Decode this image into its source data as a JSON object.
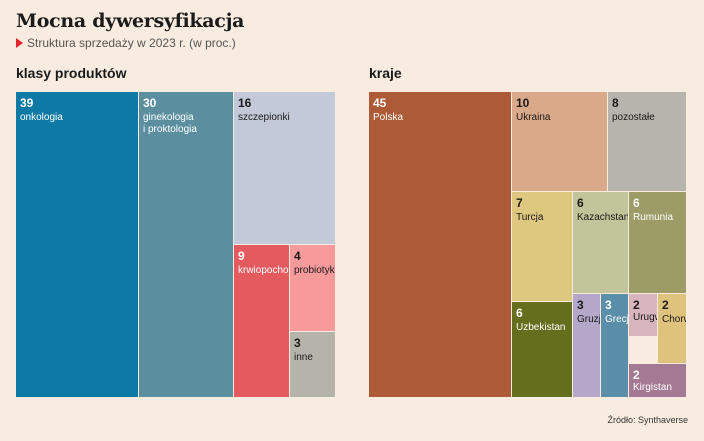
{
  "header": {
    "title": "Mocna dywersyfikacja",
    "subtitle": "Struktura sprzedaży w 2023 r. (w proc.)"
  },
  "source": "Źródło: Synthaverse",
  "chart_data": [
    {
      "type": "treemap",
      "title": "klasy produktów",
      "items": [
        {
          "label": "onkologia",
          "value": 39,
          "color": "#0f79a6"
        },
        {
          "label": "ginekologia\ni proktologia",
          "value": 30,
          "color": "#5b8fa0"
        },
        {
          "label": "szczepionki",
          "value": 16,
          "color": "#c3c9d9"
        },
        {
          "label": "krwiopochodne",
          "value": 9,
          "color": "#e45a5f"
        },
        {
          "label": "probiotyki",
          "value": 4,
          "color": "#f69a9b"
        },
        {
          "label": "inne",
          "value": 3,
          "color": "#b5b4aa"
        }
      ]
    },
    {
      "type": "treemap",
      "title": "kraje",
      "items": [
        {
          "label": "Polska",
          "value": 45,
          "color": "#ad5a36"
        },
        {
          "label": "Ukraina",
          "value": 10,
          "color": "#d9a98a"
        },
        {
          "label": "pozostałe",
          "value": 8,
          "color": "#b6b5ad"
        },
        {
          "label": "Turcja",
          "value": 7,
          "color": "#dec77f"
        },
        {
          "label": "Kazachstan",
          "value": 6,
          "color": "#c2c49a"
        },
        {
          "label": "Rumunia",
          "value": 6,
          "color": "#9d9c67"
        },
        {
          "label": "Uzbekistan",
          "value": 6,
          "color": "#646f1e"
        },
        {
          "label": "Gruzja",
          "value": 3,
          "color": "#b4a7c9"
        },
        {
          "label": "Grecja",
          "value": 3,
          "color": "#5b8ea8"
        },
        {
          "label": "Urugwaj",
          "value": 2,
          "color": "#d8b4bc"
        },
        {
          "label": "Chorwacja",
          "value": 2,
          "color": "#dfc27c"
        },
        {
          "label": "Kirgistan",
          "value": 2,
          "color": "#a47993"
        }
      ]
    }
  ]
}
